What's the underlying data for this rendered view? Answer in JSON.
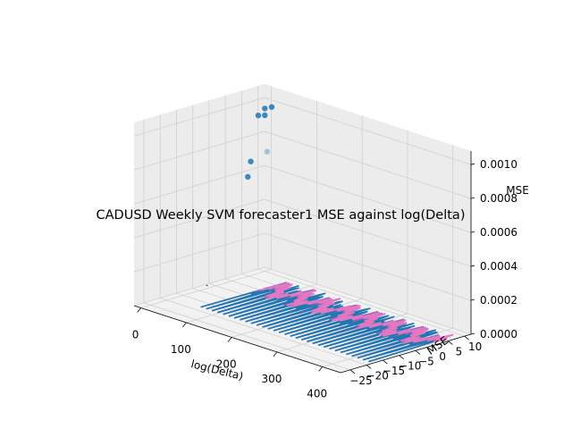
{
  "chart_data": {
    "type": "scatter",
    "projection": "3d",
    "title": "CADUSD Weekly SVM forecaster1 MSE against log(Delta)",
    "xlabel": "log(Delta)",
    "ylabel": "MSE",
    "zlabel": "MSE",
    "x_ticks": [
      "0",
      "100",
      "200",
      "300",
      "400"
    ],
    "y_ticks": [
      "−25",
      "−20",
      "−15",
      "−10",
      "−5",
      "0",
      "5",
      "10"
    ],
    "z_ticks": [
      "0.0000",
      "0.0002",
      "0.0004",
      "0.0006",
      "0.0008",
      "0.0010"
    ],
    "xlim": [
      -15,
      440
    ],
    "ylim": [
      -28,
      12
    ],
    "zlim": [
      0,
      0.00108
    ],
    "grid": true,
    "colors": {
      "scatter": "#1f77b4",
      "line_a": "#9467bd",
      "line_b": "#1f77b4",
      "line_c": "#e377c2",
      "short_segment": "#8c564b",
      "pane_floor": "#f2f2f2",
      "pane_wall": "#ececec",
      "grid": "#d0d0d0"
    },
    "scatter_points": [
      {
        "x": 0,
        "y": 10,
        "z": 0.00096
      },
      {
        "x": 0,
        "y": 10,
        "z": 0.00092
      },
      {
        "x": 0,
        "y": 8,
        "z": 0.00093
      },
      {
        "x": 8,
        "y": 11,
        "z": 0.00097
      },
      {
        "x": 5,
        "y": 5,
        "z": 0.00068
      },
      {
        "x": 20,
        "y": 2,
        "z": 0.00062
      },
      {
        "x": 5,
        "y": 10,
        "z": 0.00071
      }
    ],
    "short_segment": [
      {
        "x": 0,
        "y": -8,
        "z": 2e-05
      },
      {
        "x": 4,
        "y": -8,
        "z": 2e-05
      }
    ],
    "line_series": {
      "x_start": 60,
      "x_end": 430,
      "n_points": 150,
      "z": 0,
      "band_y": [
        -4,
        9
      ],
      "lower_y": -18
    }
  }
}
